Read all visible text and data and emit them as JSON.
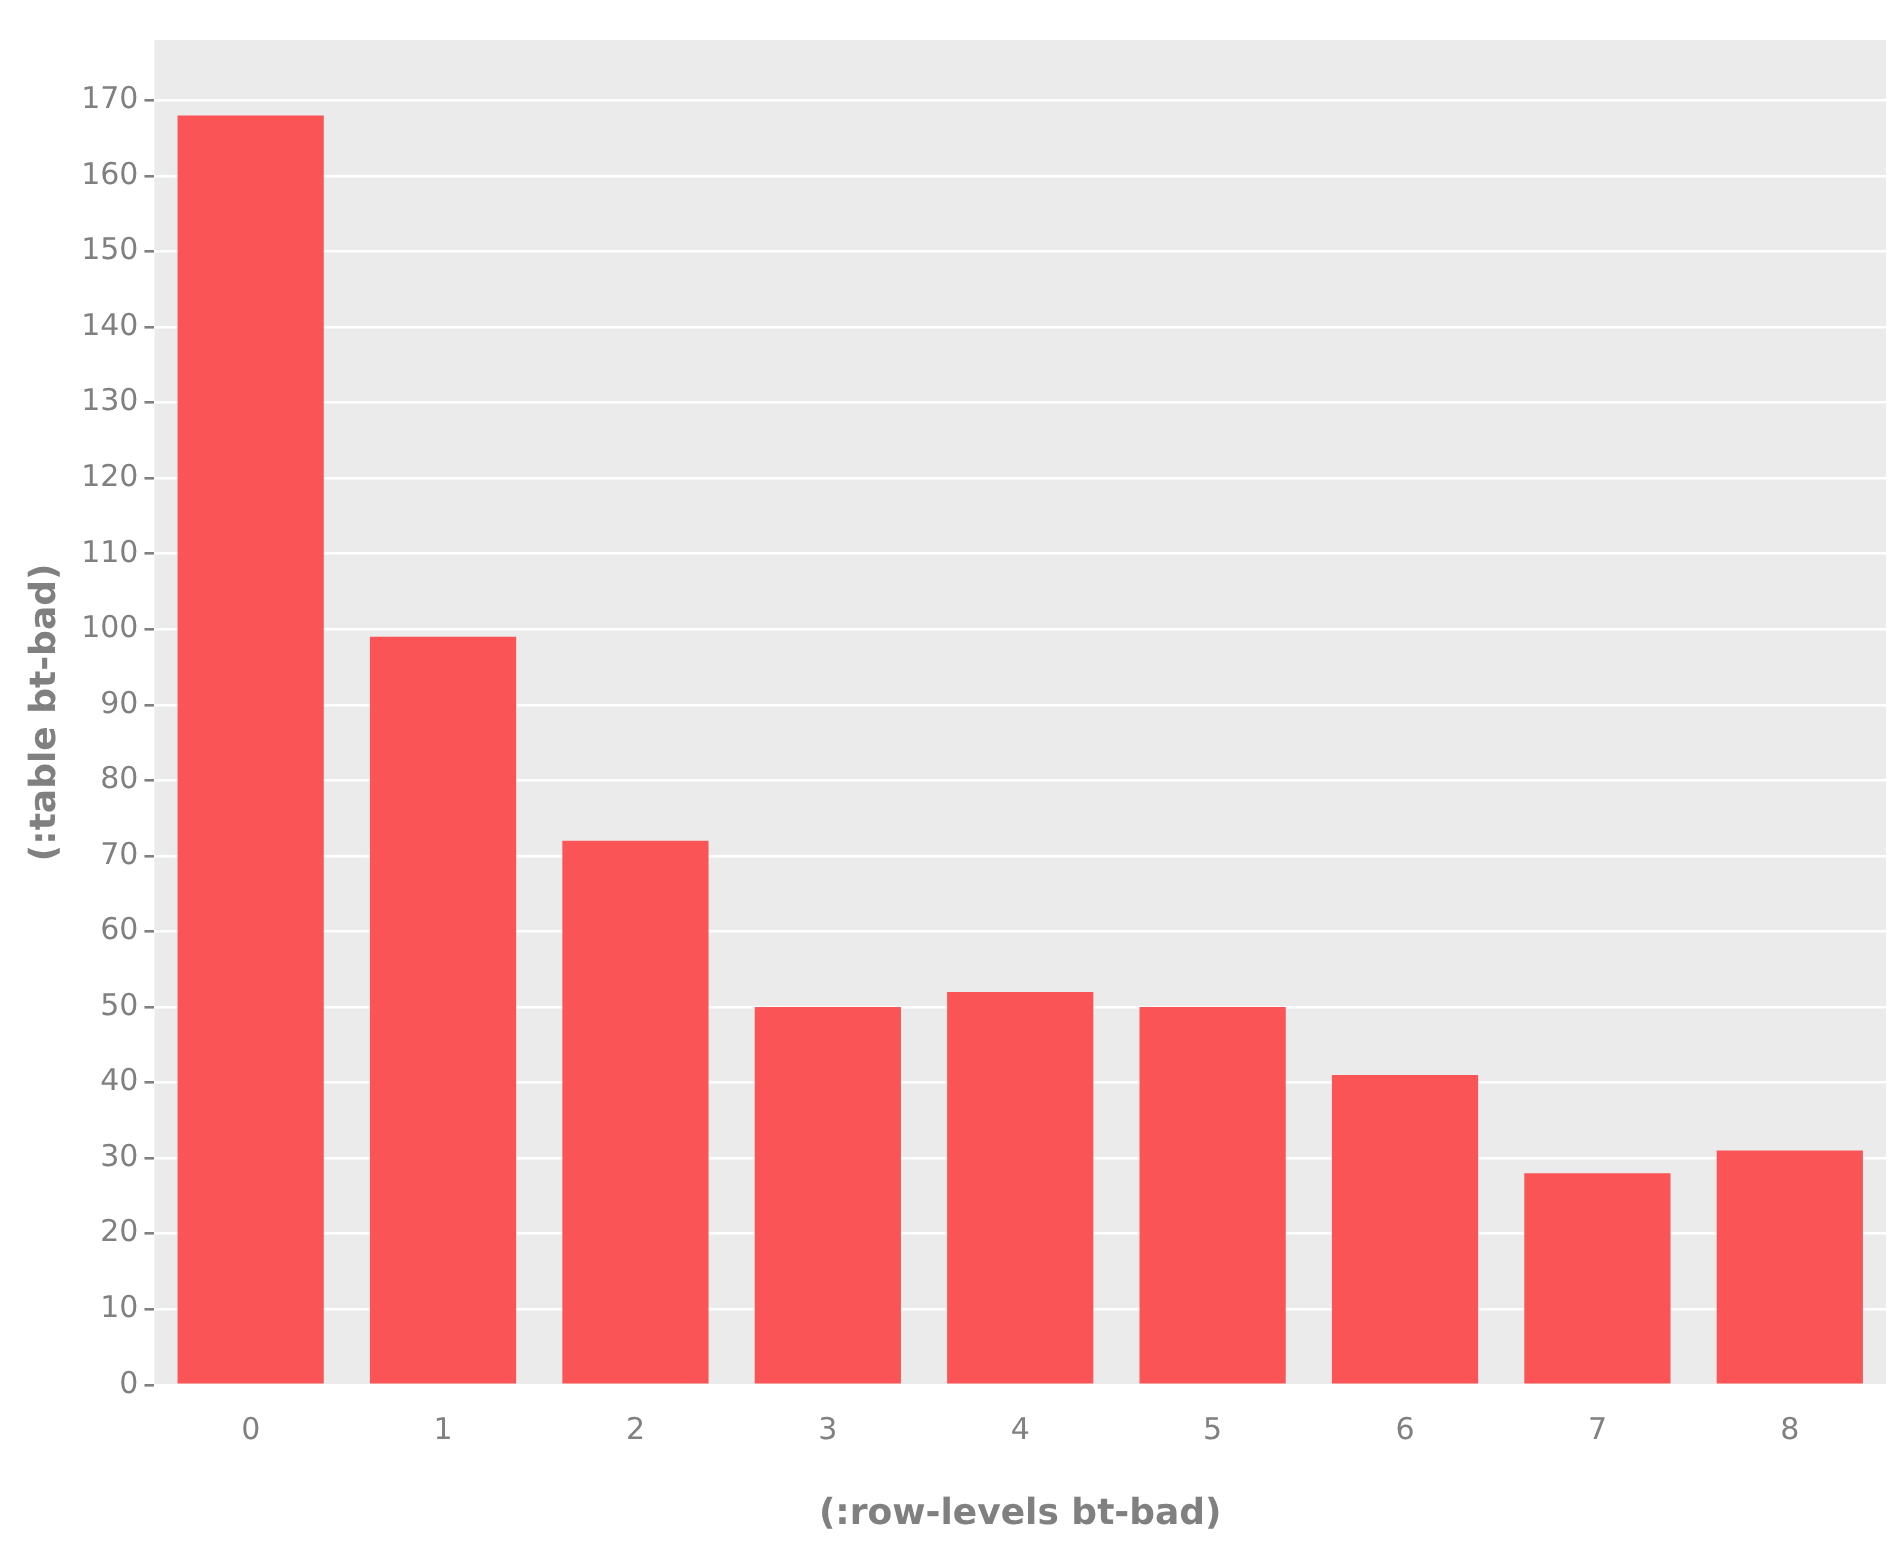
{
  "chart_data": {
    "type": "bar",
    "xlabel": "(:row-levels bt-bad)",
    "ylabel": "(:table bt-bad)",
    "categories": [
      "0",
      "1",
      "2",
      "3",
      "4",
      "5",
      "6",
      "7",
      "8"
    ],
    "values": [
      168,
      99,
      72,
      50,
      52,
      50,
      41,
      28,
      31
    ],
    "color": "#fa5457",
    "ylim": [
      0,
      178
    ],
    "yticks": [
      0,
      10,
      20,
      30,
      40,
      50,
      60,
      70,
      80,
      90,
      100,
      110,
      120,
      130,
      140,
      150,
      160,
      170
    ],
    "grid": "y"
  }
}
